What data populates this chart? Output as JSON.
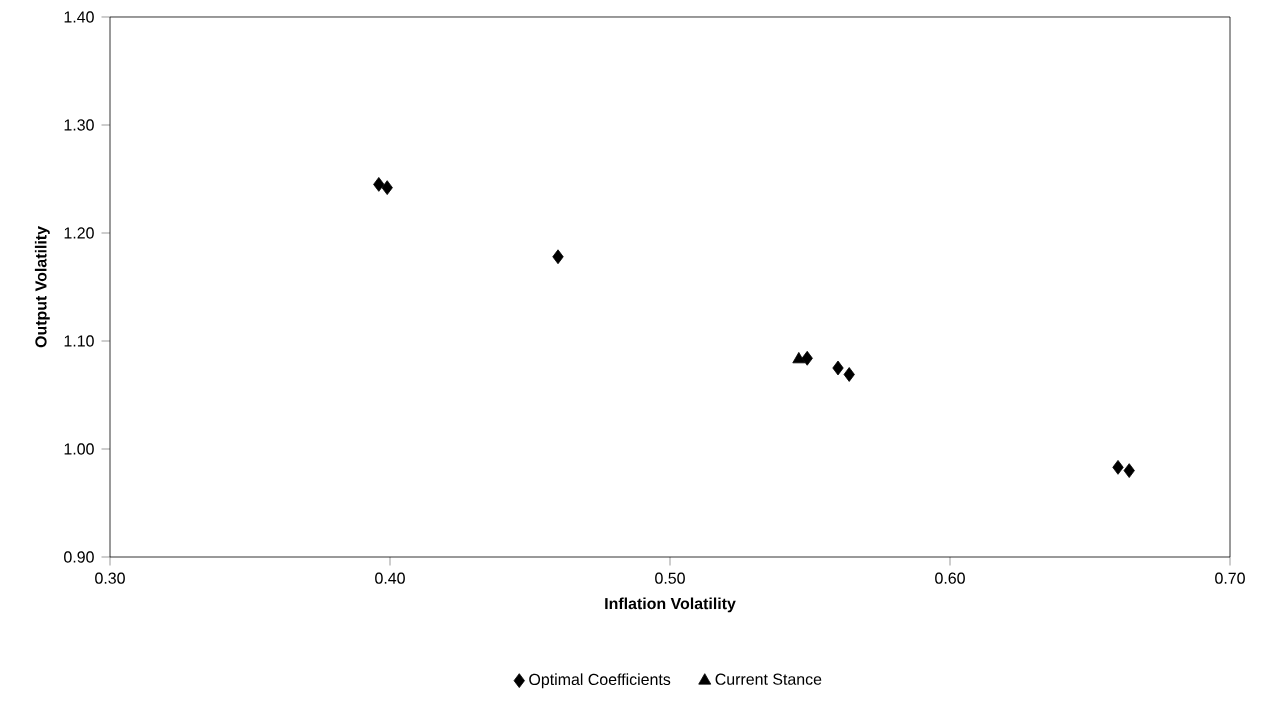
{
  "chart_data": {
    "type": "scatter",
    "xlabel": "Inflation Volatility",
    "ylabel": "Output Volatility",
    "xlim": [
      0.3,
      0.7
    ],
    "xticks": [
      {
        "value": 0.3,
        "label": "0.30"
      },
      {
        "value": 0.4,
        "label": "0.40"
      },
      {
        "value": 0.5,
        "label": "0.50"
      },
      {
        "value": 0.6,
        "label": "0.60"
      },
      {
        "value": 0.7,
        "label": "0.70"
      }
    ],
    "ylim": [
      0.9,
      1.4
    ],
    "yticks": [
      {
        "value": 0.9,
        "label": "0.90"
      },
      {
        "value": 1.0,
        "label": "1.00"
      },
      {
        "value": 1.1,
        "label": "1.10"
      },
      {
        "value": 1.2,
        "label": "1.20"
      },
      {
        "value": 1.3,
        "label": "1.30"
      },
      {
        "value": 1.4,
        "label": "1.40"
      }
    ],
    "grid": false,
    "legend": "bottom",
    "series": [
      {
        "name": "Optimal Coefficients",
        "color": "#000000",
        "marker": "diamond",
        "x": [
          0.396,
          0.399,
          0.46,
          0.549,
          0.56,
          0.564,
          0.66,
          0.664
        ],
        "values": [
          1.245,
          1.242,
          1.178,
          1.084,
          1.075,
          1.069,
          0.983,
          0.98
        ]
      },
      {
        "name": "Current Stance",
        "color": "#000000",
        "marker": "triangle",
        "x": [
          0.546
        ],
        "values": [
          1.083
        ]
      }
    ]
  }
}
